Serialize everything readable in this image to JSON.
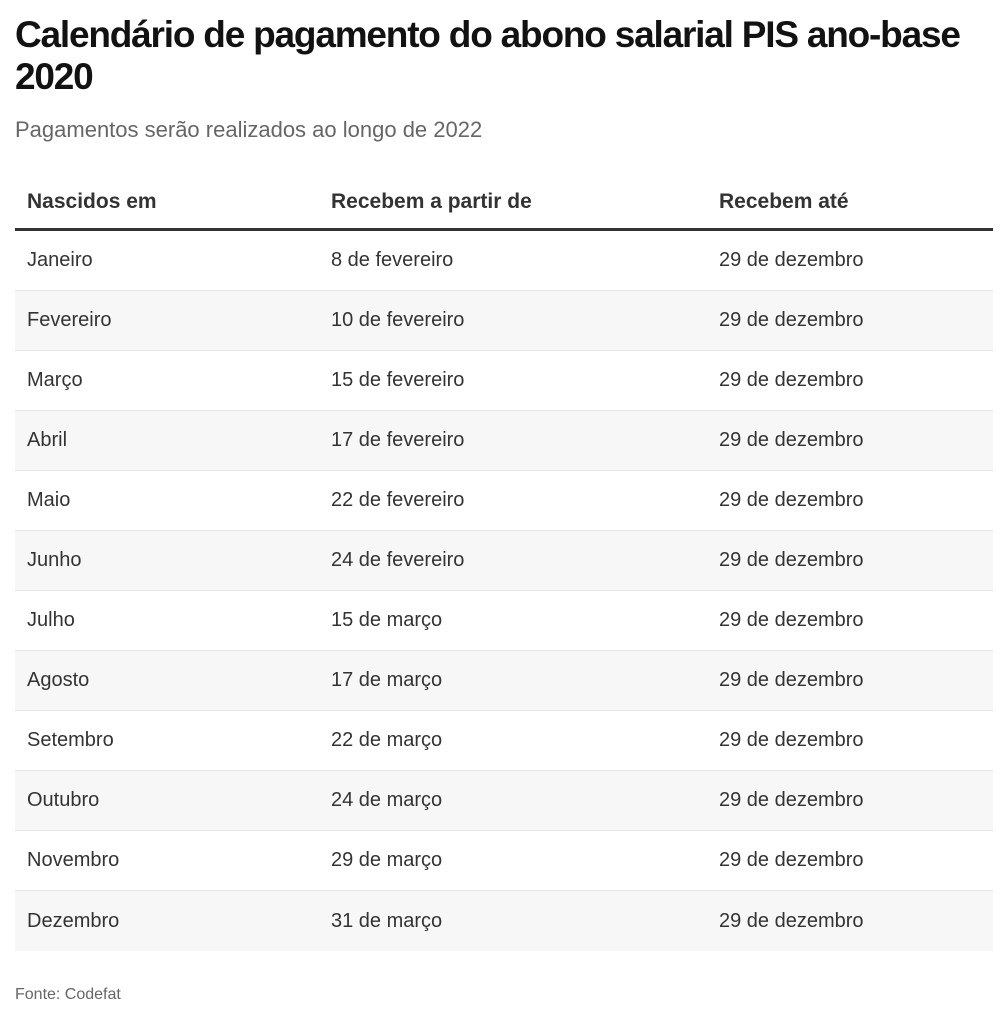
{
  "header": {
    "title": "Calendário de pagamento do abono salarial PIS ano-base 2020",
    "subtitle": "Pagamentos serão realizados ao longo de 2022"
  },
  "table": {
    "columns": [
      "Nascidos em",
      "Recebem a partir de",
      "Recebem até"
    ],
    "rows": [
      [
        "Janeiro",
        "8 de fevereiro",
        "29 de dezembro"
      ],
      [
        "Fevereiro",
        "10 de fevereiro",
        "29 de dezembro"
      ],
      [
        "Março",
        "15 de fevereiro",
        "29 de dezembro"
      ],
      [
        "Abril",
        "17 de fevereiro",
        "29 de dezembro"
      ],
      [
        "Maio",
        "22 de fevereiro",
        "29 de dezembro"
      ],
      [
        "Junho",
        "24 de fevereiro",
        "29 de dezembro"
      ],
      [
        "Julho",
        "15 de março",
        "29 de dezembro"
      ],
      [
        "Agosto",
        "17 de março",
        "29 de dezembro"
      ],
      [
        "Setembro",
        "22 de março",
        "29 de dezembro"
      ],
      [
        "Outubro",
        "24 de março",
        "29 de dezembro"
      ],
      [
        "Novembro",
        "29 de março",
        "29 de dezembro"
      ],
      [
        "Dezembro",
        "31 de março",
        "29 de dezembro"
      ]
    ]
  },
  "footer": {
    "source": "Fonte: Codefat"
  },
  "colors": {
    "header_rule": "#333333",
    "alt_row_bg": "#f7f7f7",
    "row_divider": "#e6e6e6"
  },
  "chart_data": {
    "type": "table",
    "title": "Calendário de pagamento do abono salarial PIS ano-base 2020",
    "subtitle": "Pagamentos serão realizados ao longo de 2022",
    "columns": [
      "Nascidos em",
      "Recebem a partir de",
      "Recebem até"
    ],
    "rows": [
      [
        "Janeiro",
        "8 de fevereiro",
        "29 de dezembro"
      ],
      [
        "Fevereiro",
        "10 de fevereiro",
        "29 de dezembro"
      ],
      [
        "Março",
        "15 de fevereiro",
        "29 de dezembro"
      ],
      [
        "Abril",
        "17 de fevereiro",
        "29 de dezembro"
      ],
      [
        "Maio",
        "22 de fevereiro",
        "29 de dezembro"
      ],
      [
        "Junho",
        "24 de fevereiro",
        "29 de dezembro"
      ],
      [
        "Julho",
        "15 de março",
        "29 de dezembro"
      ],
      [
        "Agosto",
        "17 de março",
        "29 de dezembro"
      ],
      [
        "Setembro",
        "22 de março",
        "29 de dezembro"
      ],
      [
        "Outubro",
        "24 de março",
        "29 de dezembro"
      ],
      [
        "Novembro",
        "29 de março",
        "29 de dezembro"
      ],
      [
        "Dezembro",
        "31 de março",
        "29 de dezembro"
      ]
    ],
    "source": "Fonte: Codefat"
  }
}
